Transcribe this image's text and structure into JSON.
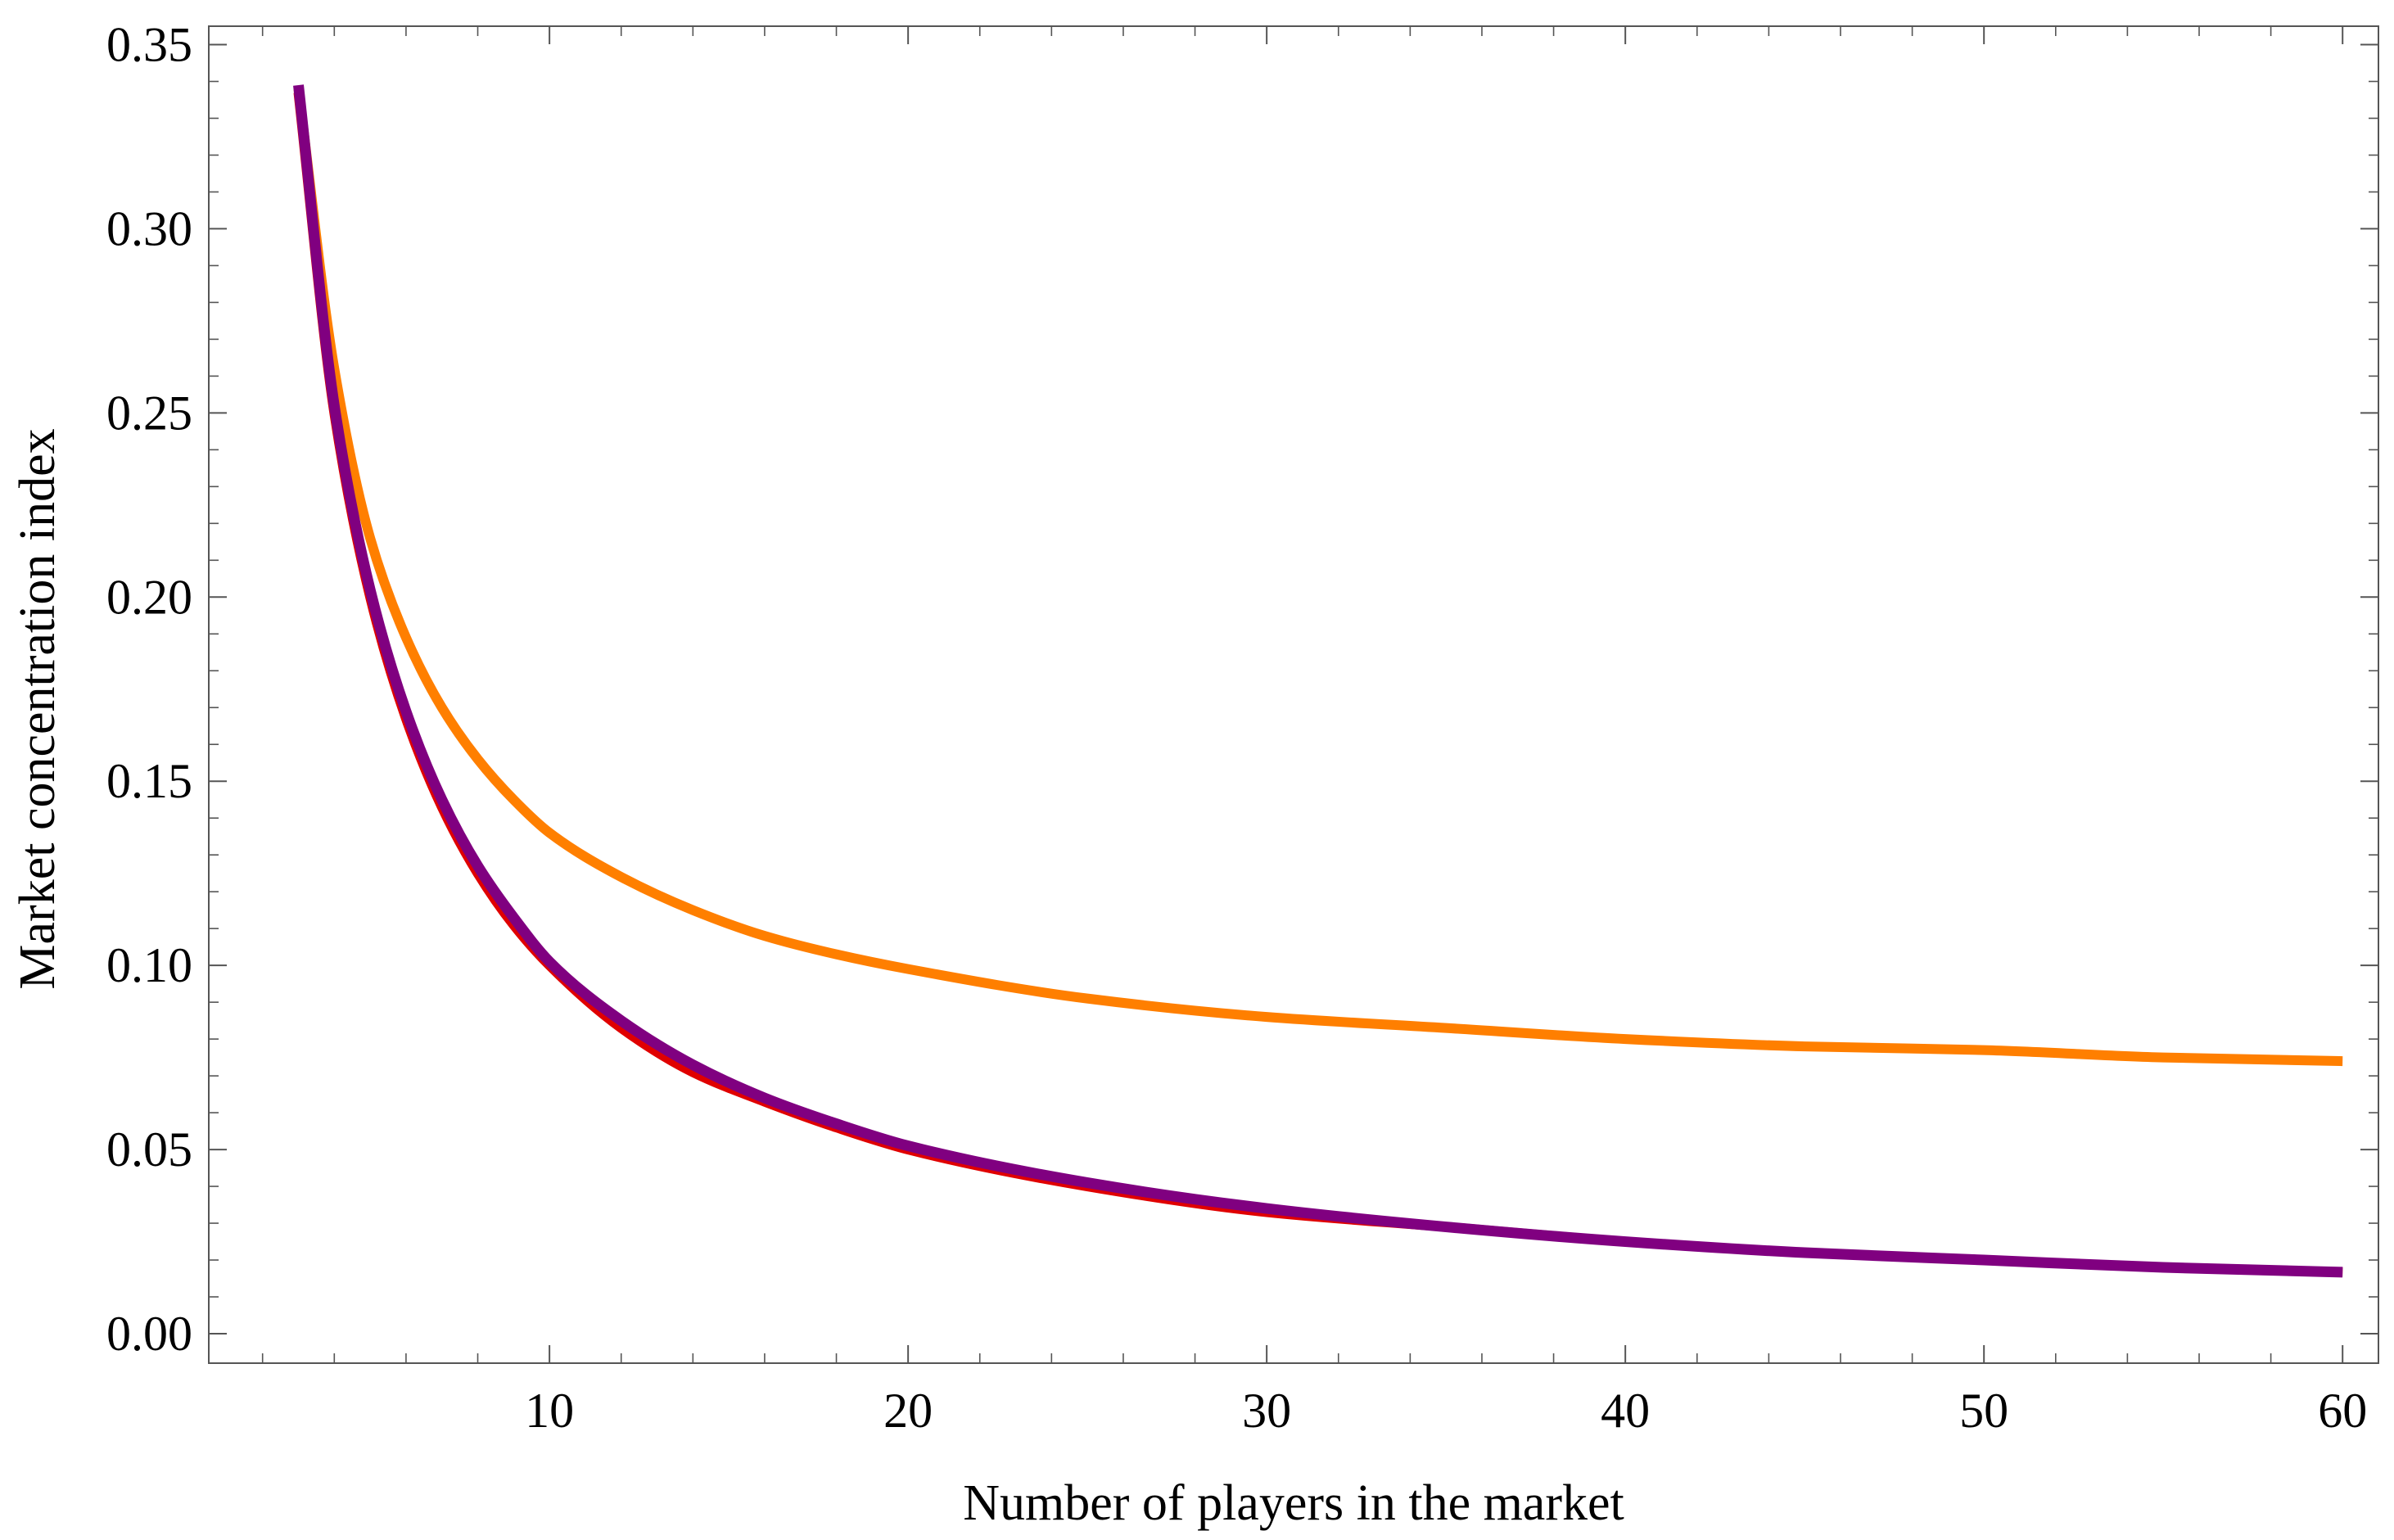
{
  "chart_data": {
    "type": "line",
    "title": "",
    "xlabel": "Number of players in the market",
    "ylabel": "Market concentration index",
    "xlim": [
      0.5,
      61
    ],
    "ylim": [
      -0.008,
      0.355
    ],
    "x_ticks": [
      10,
      20,
      30,
      40,
      50,
      60
    ],
    "x_tick_labels": [
      "10",
      "20",
      "30",
      "40",
      "50",
      "60"
    ],
    "y_ticks": [
      0.0,
      0.05,
      0.1,
      0.15,
      0.2,
      0.25,
      0.3,
      0.35
    ],
    "y_tick_labels": [
      "0.00",
      "0.05",
      "0.10",
      "0.15",
      "0.20",
      "0.25",
      "0.30",
      "0.35"
    ],
    "grid": false,
    "legend": "none",
    "series": [
      {
        "color": "#ff7f00",
        "x": [
          3,
          4,
          5,
          6,
          7,
          8,
          9,
          10,
          12,
          14,
          16,
          18,
          20,
          25,
          30,
          35,
          40,
          45,
          50,
          55,
          60
        ],
        "values": [
          0.338,
          0.262,
          0.216,
          0.189,
          0.17,
          0.156,
          0.145,
          0.136,
          0.124,
          0.115,
          0.108,
          0.103,
          0.099,
          0.091,
          0.086,
          0.083,
          0.08,
          0.078,
          0.077,
          0.075,
          0.074
        ]
      },
      {
        "color": "#e00000",
        "x": [
          3,
          4,
          5,
          6,
          7,
          8,
          9,
          10,
          12,
          14,
          16,
          18,
          20,
          25,
          30,
          35,
          40,
          45,
          50,
          55,
          60
        ],
        "values": [
          0.337,
          0.25,
          0.2,
          0.167,
          0.143,
          0.125,
          0.111,
          0.1,
          0.083,
          0.071,
          0.063,
          0.056,
          0.05,
          0.04,
          0.033,
          0.029,
          0.025,
          0.022,
          0.02,
          0.018,
          0.0167
        ]
      },
      {
        "color": "#800080",
        "x": [
          3,
          4,
          5,
          6,
          7,
          8,
          9,
          10,
          12,
          14,
          16,
          18,
          20,
          25,
          30,
          35,
          40,
          45,
          50,
          55,
          60
        ],
        "values": [
          0.339,
          0.252,
          0.202,
          0.169,
          0.145,
          0.127,
          0.113,
          0.101,
          0.085,
          0.073,
          0.064,
          0.057,
          0.051,
          0.041,
          0.034,
          0.029,
          0.025,
          0.022,
          0.02,
          0.018,
          0.0167
        ]
      }
    ]
  }
}
